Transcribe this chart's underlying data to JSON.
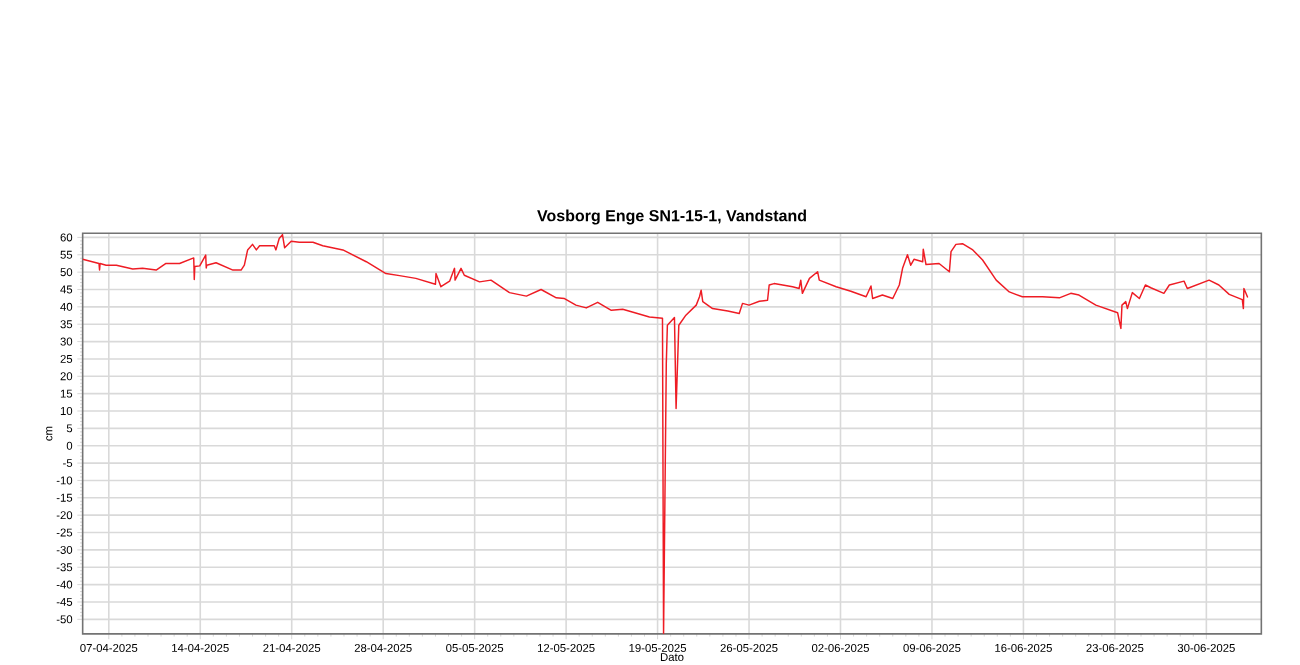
{
  "chart_data": {
    "type": "line",
    "title": "Vosborg Enge SN1-15-1, Vandstand",
    "xlabel": "Dato",
    "ylabel": "cm",
    "xlim": [
      "2025-04-05",
      "2025-07-04T05:00"
    ],
    "ylim": [
      -54.2,
      61.2
    ],
    "xticks": [
      {
        "value": "2025-04-07",
        "label": "07-04-2025"
      },
      {
        "value": "2025-04-14",
        "label": "14-04-2025"
      },
      {
        "value": "2025-04-21",
        "label": "21-04-2025"
      },
      {
        "value": "2025-04-28",
        "label": "28-04-2025"
      },
      {
        "value": "2025-05-05",
        "label": "05-05-2025"
      },
      {
        "value": "2025-05-12",
        "label": "12-05-2025"
      },
      {
        "value": "2025-05-19",
        "label": "19-05-2025"
      },
      {
        "value": "2025-05-26",
        "label": "26-05-2025"
      },
      {
        "value": "2025-06-02",
        "label": "02-06-2025"
      },
      {
        "value": "2025-06-09",
        "label": "09-06-2025"
      },
      {
        "value": "2025-06-16",
        "label": "16-06-2025"
      },
      {
        "value": "2025-06-23",
        "label": "23-06-2025"
      },
      {
        "value": "2025-06-30",
        "label": "30-06-2025"
      }
    ],
    "yticks": [
      -50,
      -45,
      -40,
      -35,
      -30,
      -25,
      -20,
      -15,
      -10,
      -5,
      0,
      5,
      10,
      15,
      20,
      25,
      30,
      35,
      40,
      45,
      50,
      55,
      60
    ],
    "grid": true,
    "line_style": "solid",
    "marker": "none",
    "series": [
      {
        "color": "#ee1c24",
        "x": [
          "2025-04-05T00:00",
          "2025-04-06T06:00",
          "2025-04-06T07:00",
          "2025-04-06T08:00",
          "2025-04-06T19:00",
          "2025-04-07T14:00",
          "2025-04-08T20:00",
          "2025-04-09T14:00",
          "2025-04-10T15:00",
          "2025-04-11T09:00",
          "2025-04-12T10:00",
          "2025-04-13T12:00",
          "2025-04-13T13:00",
          "2025-04-13T14:00",
          "2025-04-13T23:00",
          "2025-04-14T10:00",
          "2025-04-14T11:00",
          "2025-04-14T12:00",
          "2025-04-15T05:00",
          "2025-04-16T12:00",
          "2025-04-17T03:00",
          "2025-04-17T09:00",
          "2025-04-17T15:00",
          "2025-04-18T00:00",
          "2025-04-18T07:00",
          "2025-04-18T13:00",
          "2025-04-19T16:00",
          "2025-04-19T19:00",
          "2025-04-20T01:00",
          "2025-04-20T07:00",
          "2025-04-20T11:00",
          "2025-04-20T23:00",
          "2025-04-21T14:00",
          "2025-04-22T15:00",
          "2025-04-23T09:00",
          "2025-04-24T22:00",
          "2025-04-26T17:00",
          "2025-04-28T05:00",
          "2025-04-29T06:00",
          "2025-04-30T12:00",
          "2025-05-02T00:00",
          "2025-05-02T01:00",
          "2025-05-02T10:00",
          "2025-05-03T02:00",
          "2025-05-03T11:00",
          "2025-05-03T12:00",
          "2025-05-03T23:00",
          "2025-05-04T05:00",
          "2025-05-05T09:00",
          "2025-05-06T06:00",
          "2025-05-07T16:00",
          "2025-05-08T23:00",
          "2025-05-10T02:00",
          "2025-05-11T06:00",
          "2025-05-11T21:00",
          "2025-05-12T18:00",
          "2025-05-13T13:00",
          "2025-05-14T10:00",
          "2025-05-15T11:00",
          "2025-05-16T08:00",
          "2025-05-17T11:00",
          "2025-05-18T09:00",
          "2025-05-19T09:00",
          "2025-05-19T11:00",
          "2025-05-19T16:00",
          "2025-05-19T18:00",
          "2025-05-20T07:00",
          "2025-05-20T10:00",
          "2025-05-20T15:00",
          "2025-05-21T04:00",
          "2025-05-21T23:00",
          "2025-05-22T05:00",
          "2025-05-22T08:00",
          "2025-05-22T11:00",
          "2025-05-23T05:00",
          "2025-05-24T09:00",
          "2025-05-25T06:00",
          "2025-05-25T12:00",
          "2025-05-26T00:00",
          "2025-05-26T19:00",
          "2025-05-27T10:00",
          "2025-05-27T13:00",
          "2025-05-27T22:00",
          "2025-05-29T08:00",
          "2025-05-29T20:00",
          "2025-05-29T23:00",
          "2025-05-30T02:00",
          "2025-05-30T15:00",
          "2025-05-31T06:00",
          "2025-05-31T09:00",
          "2025-06-01T16:00",
          "2025-06-02T19:00",
          "2025-06-03T23:00",
          "2025-06-04T08:00",
          "2025-06-04T11:00",
          "2025-06-05T05:00",
          "2025-06-06T00:00",
          "2025-06-06T12:00",
          "2025-06-06T18:00",
          "2025-06-07T03:00",
          "2025-06-07T09:00",
          "2025-06-07T15:00",
          "2025-06-08T07:00",
          "2025-06-08T08:00",
          "2025-06-08T13:00",
          "2025-06-09T13:00",
          "2025-06-10T08:00",
          "2025-06-10T11:00",
          "2025-06-10T20:00",
          "2025-06-11T08:00",
          "2025-06-12T03:00",
          "2025-06-12T21:00",
          "2025-06-13T22:00",
          "2025-06-14T22:00",
          "2025-06-15T22:00",
          "2025-06-17T11:00",
          "2025-06-18T18:00",
          "2025-06-19T15:00",
          "2025-06-20T06:00",
          "2025-06-21T13:00",
          "2025-06-23T05:00",
          "2025-06-23T11:00",
          "2025-06-23T13:00",
          "2025-06-23T20:00",
          "2025-06-23T23:00",
          "2025-06-24T08:00",
          "2025-06-24T21:00",
          "2025-06-25T08:00",
          "2025-06-25T18:00",
          "2025-06-26T18:00",
          "2025-06-27T04:00",
          "2025-06-28T07:00",
          "2025-06-28T13:00",
          "2025-06-30T05:00",
          "2025-06-30T23:00",
          "2025-07-01T18:00",
          "2025-07-02T18:00",
          "2025-07-02T20:00",
          "2025-07-02T21:00",
          "2025-07-03T04:00"
        ],
        "values": [
          53.7,
          52.5,
          50.6,
          52.5,
          52.0,
          52.0,
          50.9,
          51.1,
          50.6,
          52.5,
          52.5,
          54.1,
          47.9,
          51.6,
          51.8,
          54.9,
          51.2,
          52.0,
          52.7,
          50.6,
          50.6,
          52.0,
          56.4,
          58.0,
          56.4,
          57.6,
          57.6,
          56.4,
          59.7,
          60.8,
          57.0,
          58.9,
          58.6,
          58.6,
          57.6,
          56.4,
          53.0,
          49.6,
          49.0,
          48.2,
          46.5,
          49.6,
          45.8,
          47.4,
          51.1,
          47.7,
          51.1,
          49.1,
          47.2,
          47.7,
          44.1,
          43.1,
          45.0,
          42.6,
          42.4,
          40.5,
          39.7,
          41.3,
          39.0,
          39.3,
          38.1,
          37.1,
          36.7,
          -54,
          23.7,
          34.7,
          36.9,
          10.7,
          34.7,
          37.6,
          40.5,
          42.9,
          44.8,
          41.5,
          39.5,
          38.8,
          38.1,
          41.0,
          40.5,
          41.6,
          41.9,
          46.3,
          46.7,
          45.8,
          45.3,
          47.7,
          43.9,
          48.2,
          50.1,
          47.7,
          45.8,
          44.5,
          42.9,
          46.0,
          42.4,
          43.4,
          42.4,
          46.3,
          51.1,
          55.0,
          52.0,
          53.7,
          53.0,
          56.6,
          52.2,
          52.5,
          50.1,
          55.9,
          58.0,
          58.2,
          56.4,
          53.5,
          47.7,
          44.3,
          42.9,
          42.9,
          42.6,
          43.9,
          43.4,
          40.5,
          38.3,
          33.8,
          40.5,
          41.5,
          39.5,
          44.1,
          42.4,
          46.3,
          45.5,
          43.9,
          46.3,
          47.4,
          45.3,
          47.7,
          46.3,
          43.6,
          42.1,
          39.5,
          45.3,
          42.7
        ]
      }
    ]
  }
}
